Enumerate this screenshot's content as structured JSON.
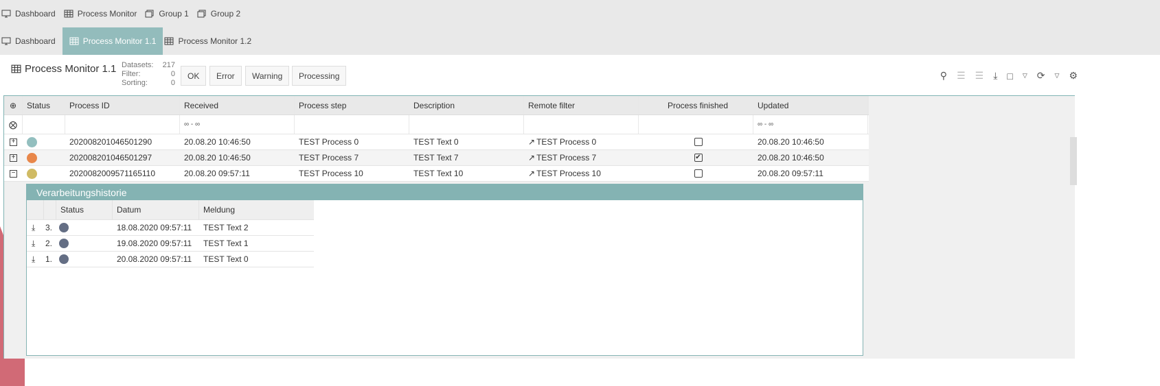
{
  "nav_top": [
    {
      "label": "Dashboard",
      "icon": "monitor-icon"
    },
    {
      "label": "Process Monitor",
      "icon": "table-icon"
    },
    {
      "label": "Group 1",
      "icon": "folders-icon"
    },
    {
      "label": "Group 2",
      "icon": "folders-icon"
    }
  ],
  "nav_tabs": [
    {
      "label": "Dashboard",
      "icon": "monitor-icon"
    },
    {
      "label": "Process Monitor 1.1",
      "icon": "table-icon",
      "active": true
    },
    {
      "label": "Process Monitor 1.2",
      "icon": "table-icon"
    }
  ],
  "header": {
    "title": "Process Monitor 1.1",
    "stats": [
      {
        "label": "Datasets:",
        "value": "217"
      },
      {
        "label": "Filter:",
        "value": "0"
      },
      {
        "label": "Sorting:",
        "value": "0"
      }
    ],
    "filters": [
      "OK",
      "Error",
      "Warning",
      "Processing"
    ]
  },
  "table": {
    "columns": [
      "Status",
      "Process ID",
      "Received",
      "Process step",
      "Description",
      "Remote filter",
      "Process finished",
      "Updated"
    ],
    "filter_range": "∞ - ∞",
    "rows": [
      {
        "status_color": "#93bfbf",
        "id": "202008201046501290",
        "received": "20.08.20 10:46:50",
        "step": "TEST Process 0",
        "desc": "TEST Text 0",
        "remote": "TEST Process 0",
        "finished": false,
        "updated": "20.08.20 10:46:50",
        "expanded": false
      },
      {
        "status_color": "#e8874a",
        "id": "202008201046501297",
        "received": "20.08.20 10:46:50",
        "step": "TEST Process 7",
        "desc": "TEST Text 7",
        "remote": "TEST Process 7",
        "finished": true,
        "updated": "20.08.20 10:46:50",
        "expanded": false
      },
      {
        "status_color": "#d0bb64",
        "id": "202008200957116511​0",
        "received": "20.08.20 09:57:11",
        "step": "TEST Process 10",
        "desc": "TEST Text 10",
        "remote": "TEST Process 10",
        "finished": false,
        "updated": "20.08.20 09:57:11",
        "expanded": true
      }
    ]
  },
  "history": {
    "title": "Verarbeitungshistorie",
    "columns": [
      "Status",
      "Datum",
      "Meldung"
    ],
    "status_color": "#646e84",
    "rows": [
      {
        "n": "3.",
        "date": "18.08.2020 09:57:11",
        "msg": "TEST Text 2"
      },
      {
        "n": "2.",
        "date": "19.08.2020 09:57:11",
        "msg": "TEST Text 1"
      },
      {
        "n": "1.",
        "date": "20.08.2020 09:57:11",
        "msg": "TEST Text 0"
      }
    ]
  }
}
